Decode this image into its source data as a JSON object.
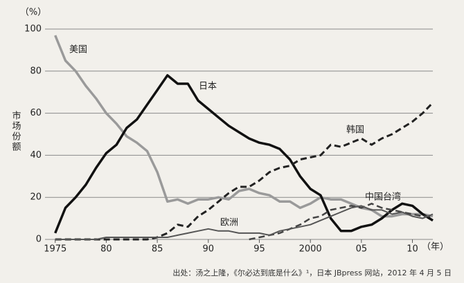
{
  "chart_data": {
    "type": "line",
    "y_unit": "（%）",
    "x_unit": "（年）",
    "ylabel": "市场份额",
    "source": "出处：汤之上隆，《尔必达到底是什么》¹，日本 JBpress 网站，2012 年 4 月 5 日",
    "x": [
      1975,
      1976,
      1977,
      1978,
      1979,
      1980,
      1981,
      1982,
      1983,
      1984,
      1985,
      1986,
      1987,
      1988,
      1989,
      1990,
      1991,
      1992,
      1993,
      1994,
      1995,
      1996,
      1997,
      1998,
      1999,
      2000,
      2001,
      2002,
      2003,
      2004,
      2005,
      2006,
      2007,
      2008,
      2009,
      2010,
      2011,
      2012
    ],
    "xlim": [
      1974,
      2012
    ],
    "xticks": [
      1975,
      {
        "value": 1980,
        "label": "80"
      },
      {
        "value": 1985,
        "label": "85"
      },
      {
        "value": 1990,
        "label": "90"
      },
      {
        "value": 1995,
        "label": "95"
      },
      2000,
      {
        "value": 2005,
        "label": "05"
      },
      {
        "value": 2010,
        "label": "10"
      }
    ],
    "ylim": [
      0,
      100
    ],
    "yticks": [
      0,
      20,
      40,
      60,
      80,
      100
    ],
    "grid": true,
    "series": [
      {
        "name": "美国",
        "color": "#9a9a9a",
        "dash": false,
        "values": [
          97,
          85,
          80,
          73,
          67,
          60,
          55,
          49,
          46,
          42,
          32,
          18,
          19,
          17,
          19,
          19,
          20,
          19,
          23,
          24,
          22,
          21,
          18,
          18,
          15,
          17,
          20,
          19,
          19,
          17,
          15,
          14,
          11,
          11,
          12,
          12,
          12,
          11
        ]
      },
      {
        "name": "日本",
        "color": "#111111",
        "dash": false,
        "values": [
          3,
          15,
          20,
          26,
          34,
          41,
          45,
          53,
          57,
          64,
          71,
          78,
          74,
          74,
          66,
          62,
          58,
          54,
          51,
          48,
          46,
          45,
          43,
          38,
          30,
          24,
          21,
          10,
          4,
          4,
          6,
          7,
          10,
          14,
          17,
          16,
          12,
          9
        ]
      },
      {
        "name": "韩国",
        "color": "#222222",
        "dash": true,
        "values": [
          0,
          0,
          0,
          0,
          0,
          0,
          0,
          0,
          0,
          0,
          1,
          3,
          7,
          6,
          11,
          14,
          18,
          22,
          25,
          25,
          28,
          32,
          34,
          35,
          38,
          39,
          40,
          45,
          44,
          46,
          48,
          45,
          48,
          50,
          53,
          56,
          60,
          65
        ]
      },
      {
        "name": "中国台湾",
        "color": "#444444",
        "dash": true,
        "values": [
          null,
          null,
          null,
          null,
          null,
          null,
          null,
          null,
          null,
          null,
          null,
          null,
          null,
          null,
          null,
          null,
          null,
          null,
          null,
          0,
          1,
          2,
          3,
          5,
          7,
          10,
          11,
          14,
          15,
          16,
          15,
          17,
          15,
          14,
          13,
          12,
          11,
          11
        ]
      },
      {
        "name": "欧洲",
        "color": "#555555",
        "dash": false,
        "values": [
          0,
          0,
          0,
          0,
          0,
          1,
          1,
          1,
          1,
          1,
          1,
          1,
          2,
          3,
          4,
          5,
          4,
          4,
          3,
          3,
          3,
          2,
          4,
          5,
          6,
          7,
          9,
          11,
          13,
          15,
          16,
          14,
          14,
          12,
          13,
          11,
          10,
          12
        ]
      }
    ]
  }
}
